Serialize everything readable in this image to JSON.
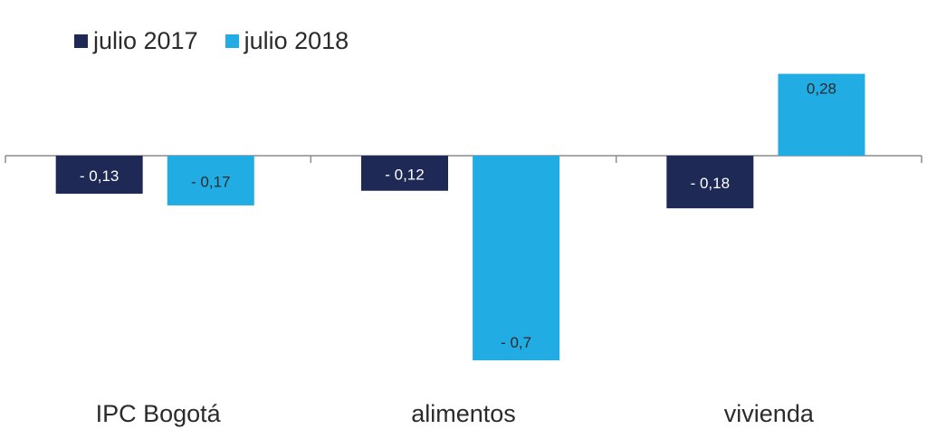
{
  "chart_data": {
    "type": "bar",
    "categories": [
      "IPC Bogotá",
      "alimentos",
      "vivienda"
    ],
    "series": [
      {
        "name": "julio 2017",
        "values": [
          -0.13,
          -0.12,
          -0.18
        ],
        "labels": [
          "- 0,13",
          "- 0,12",
          "- 0,18"
        ],
        "color": "#1f2955"
      },
      {
        "name": "julio 2018",
        "values": [
          -0.17,
          -0.7,
          0.28
        ],
        "labels": [
          "- 0,17",
          "- 0,7",
          "0,28"
        ],
        "color": "#21ace4"
      }
    ],
    "title": "",
    "xlabel": "",
    "ylabel": "",
    "ylim": [
      -0.7,
      0.28
    ],
    "grid": false,
    "legend_position": "top-left"
  },
  "colors": {
    "axis": "#8c8c8c",
    "label_on_dark": "#ffffff",
    "label_on_light": "#2b2b2b",
    "category_text": "#2b2b2b"
  }
}
